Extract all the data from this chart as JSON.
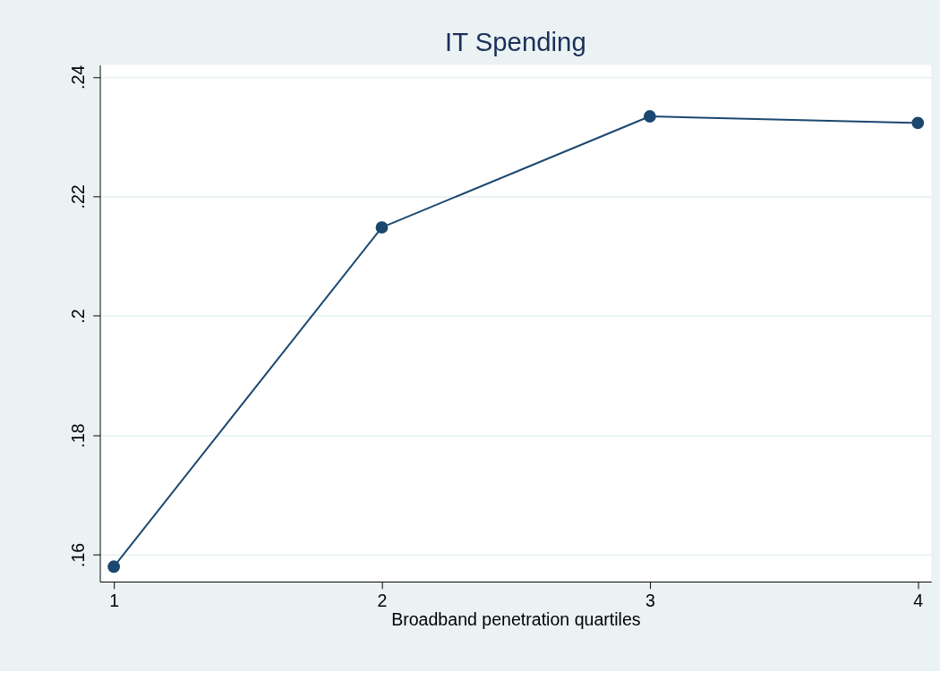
{
  "chart_data": {
    "type": "line",
    "title": "IT Spending",
    "xlabel": "Broadband penetration quartiles",
    "x": [
      1,
      2,
      3,
      4
    ],
    "series": [
      {
        "color": "#1a476f",
        "values": [
          0.158,
          0.2148,
          0.2334,
          0.2323
        ]
      }
    ],
    "xlim": [
      0.948,
      4.05
    ],
    "xticks": [
      1,
      2,
      3,
      4
    ],
    "ylim": [
      0.1555,
      0.242
    ],
    "yticks": [
      {
        "value": 0.16,
        "label": ".16"
      },
      {
        "value": 0.18,
        "label": ".18"
      },
      {
        "value": 0.2,
        "label": ".2"
      },
      {
        "value": 0.22,
        "label": ".22"
      },
      {
        "value": 0.24,
        "label": ".24"
      }
    ],
    "grid": "y",
    "marker": "circle",
    "line_style": "solid"
  }
}
